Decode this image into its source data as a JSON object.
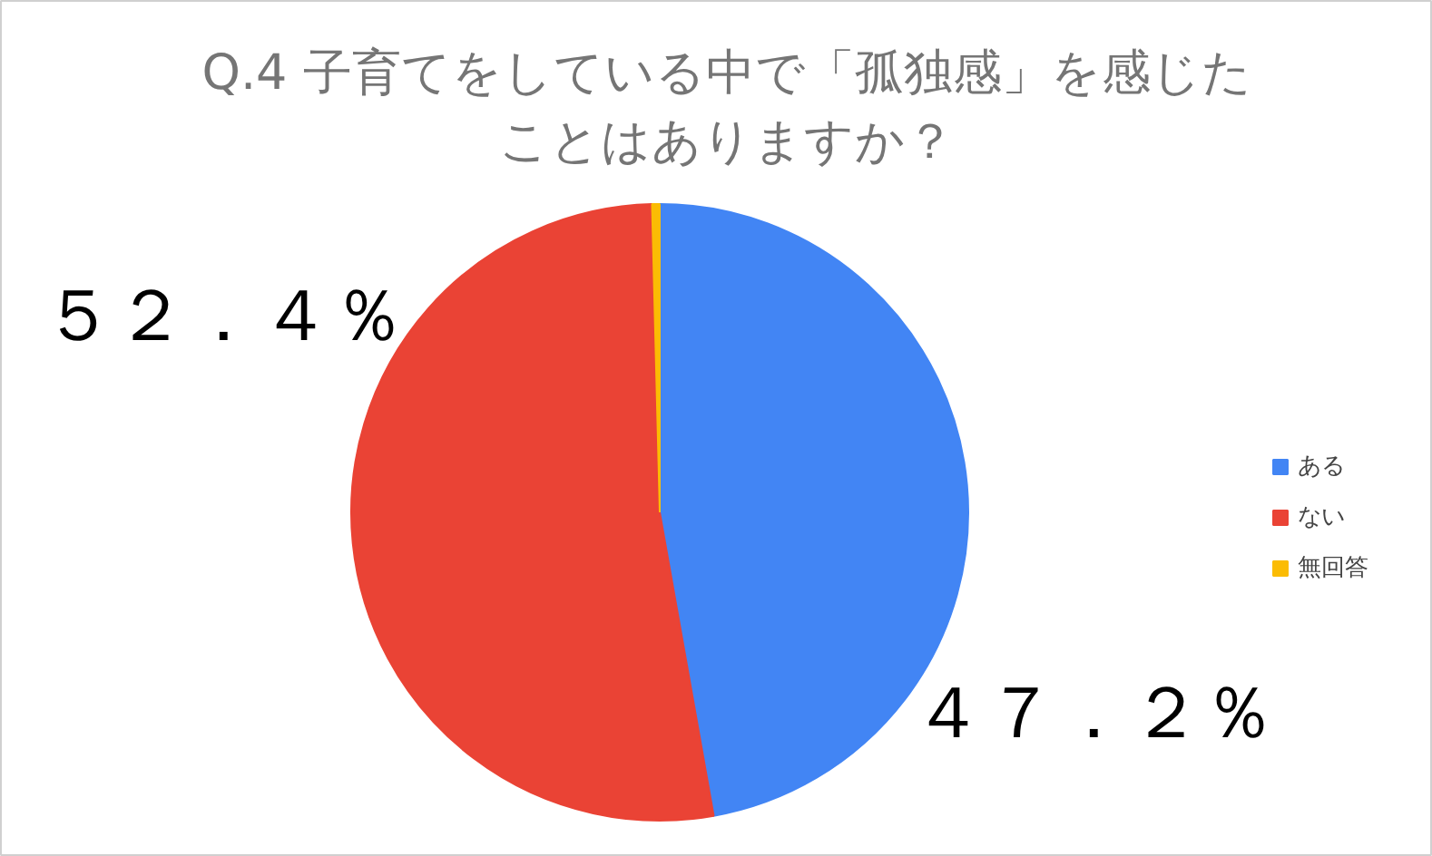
{
  "chart_data": {
    "type": "pie",
    "title": "Q.4 子育てをしている中で「孤独感」を感じたことはありますか？",
    "categories": [
      "ある",
      "ない",
      "無回答"
    ],
    "values": [
      47.2,
      52.4,
      0.4
    ],
    "colors": [
      "#4285f4",
      "#ea4335",
      "#fbbc04"
    ],
    "value_labels": [
      "４７．２％",
      "５２．４％",
      null
    ],
    "legend": "right"
  }
}
